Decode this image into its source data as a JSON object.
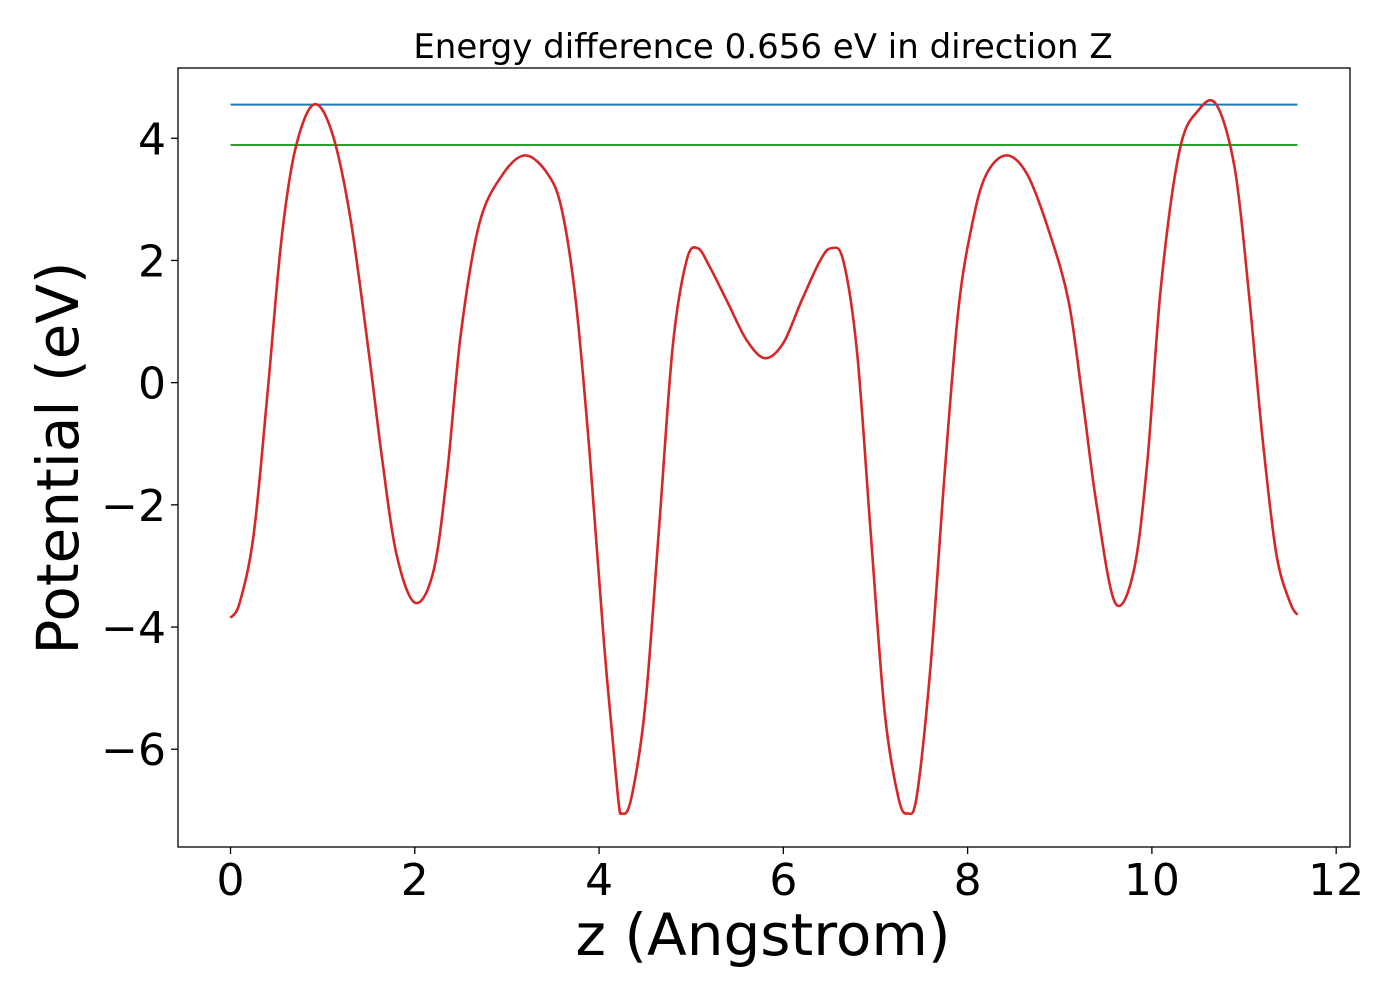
{
  "chart_data": {
    "type": "line",
    "title": "Energy difference 0.656 eV in direction Z",
    "xlabel": "z (Angstrom)",
    "ylabel": "Potential (eV)",
    "xlim": [
      -0.57,
      12.15
    ],
    "ylim": [
      -7.6,
      5.15
    ],
    "xticks": [
      0,
      2,
      4,
      6,
      8,
      10,
      12
    ],
    "xtick_labels": [
      "0",
      "2",
      "4",
      "6",
      "8",
      "10",
      "12"
    ],
    "yticks": [
      -6,
      -4,
      -2,
      0,
      2,
      4
    ],
    "ytick_labels": [
      "−6",
      "−4",
      "−2",
      "0",
      "2",
      "4"
    ],
    "grid": false,
    "series": [
      {
        "color": "#d62728",
        "x": [
          0,
          0.1,
          0.25,
          0.4,
          0.55,
          0.7,
          0.9,
          1.1,
          1.3,
          1.5,
          1.65,
          1.8,
          2.0,
          2.2,
          2.35,
          2.5,
          2.7,
          2.95,
          3.2,
          3.45,
          3.6,
          3.75,
          3.9,
          4.05,
          4.2,
          4.25,
          4.35,
          4.5,
          4.65,
          4.8,
          4.95,
          5.07,
          5.2,
          5.4,
          5.6,
          5.8,
          6.0,
          6.2,
          6.4,
          6.52,
          6.65,
          6.8,
          6.95,
          7.1,
          7.25,
          7.35,
          7.45,
          7.6,
          7.75,
          7.9,
          8.05,
          8.2,
          8.42,
          8.65,
          8.9,
          9.1,
          9.25,
          9.4,
          9.6,
          9.8,
          9.95,
          10.1,
          10.3,
          10.5,
          10.7,
          10.9,
          11.05,
          11.2,
          11.35,
          11.5,
          11.58
        ],
        "y": [
          -3.85,
          -3.6,
          -2.5,
          -0.2,
          2.3,
          3.8,
          4.55,
          4.1,
          2.7,
          0.5,
          -1.3,
          -2.8,
          -3.6,
          -3.1,
          -1.5,
          0.8,
          2.6,
          3.4,
          3.72,
          3.4,
          2.8,
          1.3,
          -1.2,
          -4.2,
          -6.7,
          -7.05,
          -6.8,
          -5.3,
          -2.4,
          0.6,
          2.0,
          2.2,
          1.9,
          1.3,
          0.7,
          0.4,
          0.65,
          1.35,
          2.0,
          2.2,
          2.0,
          0.5,
          -2.5,
          -5.4,
          -6.8,
          -7.05,
          -6.75,
          -4.6,
          -1.5,
          1.2,
          2.6,
          3.4,
          3.72,
          3.4,
          2.4,
          1.3,
          -0.3,
          -2.0,
          -3.6,
          -3.1,
          -1.3,
          1.6,
          3.8,
          4.45,
          4.55,
          3.5,
          1.5,
          -0.9,
          -2.8,
          -3.6,
          -3.8
        ]
      },
      {
        "color": "#1f77b4",
        "x": [
          0,
          11.58
        ],
        "y": [
          4.55,
          4.55
        ]
      },
      {
        "color": "#2ca02c",
        "x": [
          0,
          11.58
        ],
        "y": [
          3.89,
          3.89
        ]
      }
    ]
  }
}
